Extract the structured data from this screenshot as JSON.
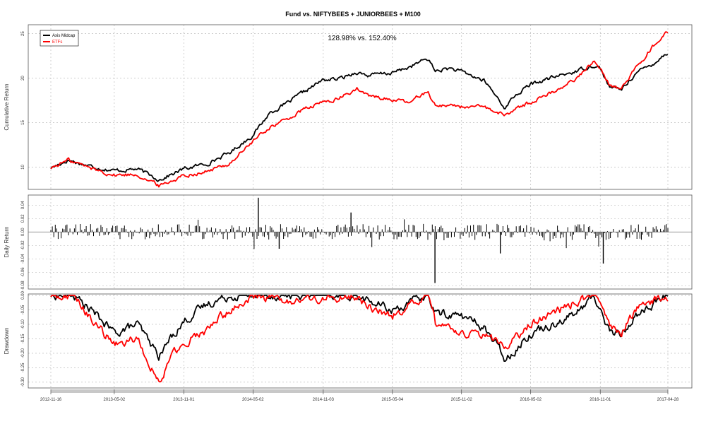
{
  "chart_data": {
    "type": "line",
    "title": "Fund vs. NIFTYBEES + JUNIORBEES + M100",
    "annotation": "128.98% vs. 152.40%",
    "x_range": [
      "2012-11-16",
      "2017-04-28"
    ],
    "x_ticks": [
      "2012-11-16",
      "2013-05-02",
      "2013-11-01",
      "2014-05-02",
      "2014-11-03",
      "2015-05-04",
      "2015-11-02",
      "2016-05-02",
      "2016-11-01",
      "2017-04-28"
    ],
    "legend": {
      "position": "top-left",
      "entries": [
        {
          "name": "Axis Midcap",
          "color": "#000000"
        },
        {
          "name": "ETFs",
          "color": "#ff0000"
        }
      ]
    },
    "grid": true,
    "panels": [
      {
        "id": "cumulative",
        "ylabel": "Cumulative Return",
        "ylim": [
          7.5,
          26
        ],
        "yticks": [
          "10",
          "15",
          "20",
          "25"
        ],
        "ytick_values": [
          10,
          15,
          20,
          25
        ],
        "series": [
          {
            "name": "Axis Midcap",
            "color": "#000000",
            "x": [
              "2012-11-16",
              "2013-01-01",
              "2013-03-01",
              "2013-05-02",
              "2013-07-01",
              "2013-08-28",
              "2013-10-01",
              "2013-11-01",
              "2014-01-01",
              "2014-03-01",
              "2014-05-02",
              "2014-06-15",
              "2014-08-01",
              "2014-09-15",
              "2014-11-03",
              "2014-12-15",
              "2015-01-30",
              "2015-03-01",
              "2015-05-04",
              "2015-06-15",
              "2015-08-05",
              "2015-08-25",
              "2015-10-01",
              "2015-11-02",
              "2016-01-01",
              "2016-02-26",
              "2016-03-15",
              "2016-05-02",
              "2016-07-01",
              "2016-09-01",
              "2016-10-15",
              "2016-11-01",
              "2016-11-25",
              "2016-12-26",
              "2017-02-01",
              "2017-03-15",
              "2017-04-28"
            ],
            "y": [
              9.9,
              10.8,
              10.1,
              9.6,
              9.8,
              8.6,
              9.2,
              9.8,
              10.4,
              11.6,
              13.6,
              16.1,
              17.2,
              18.5,
              19.8,
              19.9,
              20.7,
              20.3,
              20.6,
              21.2,
              22.2,
              20.8,
              21.1,
              20.7,
              19.7,
              16.6,
              17.8,
              19.3,
              20.1,
              20.8,
              21.5,
              21.1,
              19.0,
              18.7,
              20.5,
              21.5,
              22.9
            ]
          },
          {
            "name": "ETFs",
            "color": "#ff0000",
            "x": [
              "2012-11-16",
              "2013-01-01",
              "2013-03-01",
              "2013-05-02",
              "2013-07-01",
              "2013-08-28",
              "2013-10-01",
              "2013-11-01",
              "2014-01-01",
              "2014-03-01",
              "2014-05-02",
              "2014-06-15",
              "2014-08-01",
              "2014-09-15",
              "2014-11-03",
              "2014-12-15",
              "2015-01-30",
              "2015-03-01",
              "2015-05-04",
              "2015-06-15",
              "2015-08-05",
              "2015-08-25",
              "2015-10-01",
              "2015-11-02",
              "2016-01-01",
              "2016-02-26",
              "2016-03-15",
              "2016-05-02",
              "2016-07-01",
              "2016-09-01",
              "2016-10-15",
              "2016-11-01",
              "2016-11-25",
              "2016-12-26",
              "2017-02-01",
              "2017-03-15",
              "2017-04-28"
            ],
            "y": [
              9.9,
              10.8,
              9.9,
              9.1,
              9.2,
              7.9,
              8.5,
              9.1,
              9.5,
              10.4,
              12.9,
              14.5,
              15.4,
              16.5,
              17.3,
              17.7,
              18.8,
              18.0,
              17.6,
              17.2,
              18.6,
              16.9,
              17.0,
              16.8,
              16.7,
              15.8,
              16.4,
              17.3,
              18.5,
              20.0,
              21.9,
              21.3,
              19.3,
              18.8,
              21.0,
              23.4,
              25.2
            ]
          }
        ]
      },
      {
        "id": "daily",
        "ylabel": "Daily Return",
        "ylim": [
          -0.085,
          0.055
        ],
        "yticks": [
          "-0.08",
          "-0.06",
          "-0.04",
          "-0.02",
          "0.00",
          "0.02",
          "0.04"
        ],
        "ytick_values": [
          -0.08,
          -0.06,
          -0.04,
          -0.02,
          0.0,
          0.02,
          0.04
        ],
        "spikes": [
          {
            "x": "2014-05-16",
            "y": 0.051
          },
          {
            "x": "2015-08-24",
            "y": -0.076
          },
          {
            "x": "2016-11-09",
            "y": -0.047
          },
          {
            "x": "2016-02-12",
            "y": -0.032
          },
          {
            "x": "2014-07-10",
            "y": -0.025
          },
          {
            "x": "2015-01-15",
            "y": 0.029
          }
        ]
      },
      {
        "id": "drawdown",
        "ylabel": "Drawdown",
        "ylim": [
          -0.32,
          0.005
        ],
        "yticks": [
          "-0.30",
          "-0.25",
          "-0.20",
          "-0.15",
          "-0.10",
          "-0.05",
          "0.00"
        ],
        "ytick_values": [
          -0.3,
          -0.25,
          -0.2,
          -0.15,
          -0.1,
          -0.05,
          0.0
        ],
        "series": [
          {
            "name": "Axis Midcap",
            "color": "#000000",
            "x": [
              "2012-11-16",
              "2013-01-15",
              "2013-03-01",
              "2013-05-02",
              "2013-07-01",
              "2013-08-28",
              "2013-10-01",
              "2013-11-01",
              "2014-01-01",
              "2014-03-01",
              "2014-05-02",
              "2014-08-01",
              "2014-11-03",
              "2015-01-30",
              "2015-03-01",
              "2015-05-04",
              "2015-08-05",
              "2015-08-25",
              "2015-11-02",
              "2016-01-01",
              "2016-02-26",
              "2016-05-02",
              "2016-09-01",
              "2016-10-15",
              "2016-11-25",
              "2016-12-26",
              "2017-02-01",
              "2017-04-28"
            ],
            "y": [
              0.0,
              0.0,
              -0.05,
              -0.13,
              -0.1,
              -0.21,
              -0.14,
              -0.09,
              -0.03,
              0.0,
              0.0,
              0.0,
              0.0,
              0.0,
              -0.02,
              -0.05,
              0.0,
              -0.06,
              -0.07,
              -0.11,
              -0.22,
              -0.13,
              -0.06,
              0.0,
              -0.12,
              -0.14,
              -0.07,
              0.0
            ]
          },
          {
            "name": "ETFs",
            "color": "#ff0000",
            "x": [
              "2012-11-16",
              "2013-01-15",
              "2013-03-01",
              "2013-05-02",
              "2013-07-01",
              "2013-08-28",
              "2013-10-01",
              "2013-11-01",
              "2014-01-01",
              "2014-03-01",
              "2014-05-02",
              "2014-08-01",
              "2014-11-03",
              "2015-01-30",
              "2015-03-01",
              "2015-05-04",
              "2015-08-05",
              "2015-08-25",
              "2015-11-02",
              "2016-01-01",
              "2016-02-26",
              "2016-05-02",
              "2016-09-01",
              "2016-10-15",
              "2016-11-25",
              "2016-12-26",
              "2017-02-01",
              "2017-04-28"
            ],
            "y": [
              0.0,
              0.0,
              -0.08,
              -0.17,
              -0.15,
              -0.3,
              -0.21,
              -0.16,
              -0.12,
              -0.05,
              0.0,
              -0.02,
              -0.01,
              0.0,
              -0.04,
              -0.07,
              0.0,
              -0.1,
              -0.13,
              -0.14,
              -0.18,
              -0.1,
              -0.02,
              0.0,
              -0.11,
              -0.13,
              -0.05,
              0.0
            ]
          }
        ]
      }
    ]
  }
}
